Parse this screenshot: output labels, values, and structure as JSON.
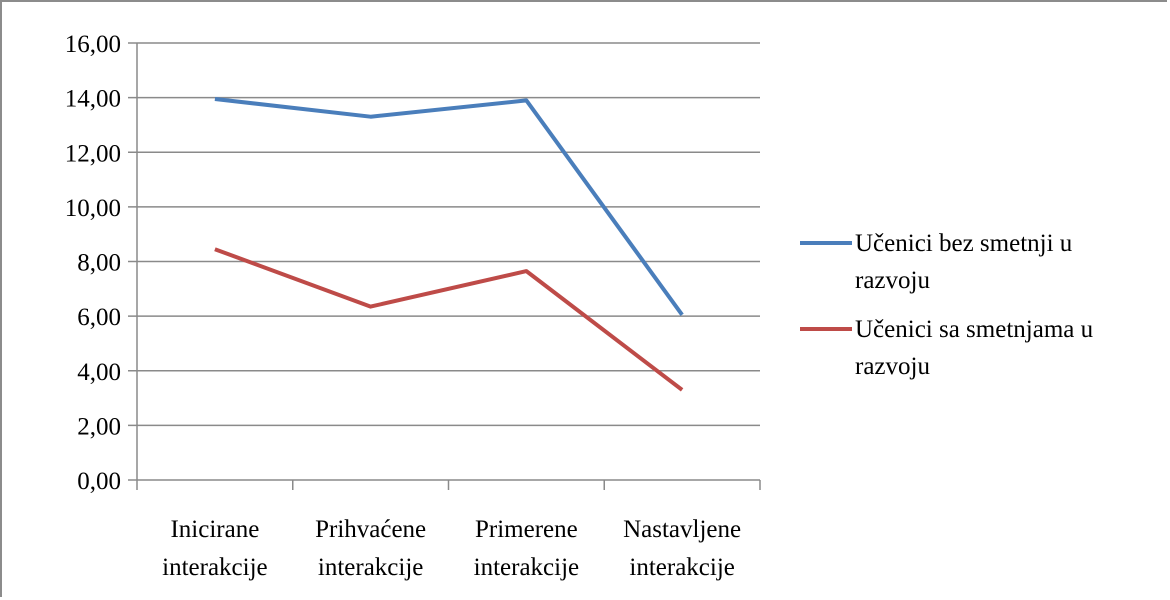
{
  "chart_data": {
    "type": "line",
    "categories": [
      [
        "Inicirane",
        "interakcije"
      ],
      [
        "Prihvaćene",
        "interakcije"
      ],
      [
        "Primerene",
        "interakcije"
      ],
      [
        "Nastavljene",
        "interakcije"
      ]
    ],
    "series": [
      {
        "name": [
          "Učenici bez smetnji u",
          "razvoju"
        ],
        "color": "#4a7ebb",
        "values": [
          13.95,
          13.3,
          13.9,
          6.05
        ]
      },
      {
        "name": [
          "Učenici sa smetnjama u",
          "razvoju"
        ],
        "color": "#be4b48",
        "values": [
          8.45,
          6.35,
          7.65,
          3.3
        ]
      }
    ],
    "yticks": [
      "0,00",
      "2,00",
      "4,00",
      "6,00",
      "8,00",
      "10,00",
      "12,00",
      "14,00",
      "16,00"
    ],
    "ylim": [
      0,
      16
    ],
    "grid": true,
    "legend": "right",
    "title": "",
    "xlabel": "",
    "ylabel": ""
  }
}
